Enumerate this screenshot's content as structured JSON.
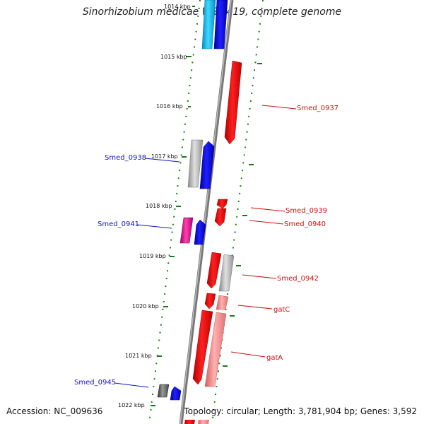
{
  "title": "Sinorhizobium medicae WSM419, complete genome",
  "footer": {
    "accession": "Accession: NC_009636",
    "topology": "Topology: circular; Length: 3,781,904 bp; Genes: 3,592"
  },
  "ticks": [
    "1014 kbp",
    "1015 kbp",
    "1016 kbp",
    "1017 kbp",
    "1018 kbp",
    "1019 kbp",
    "1020 kbp",
    "1021 kbp",
    "1022 kbp"
  ],
  "labels": {
    "left": [
      "Smed_0938",
      "Smed_0941",
      "Smed_0945"
    ],
    "right": [
      "Smed_0937",
      "Smed_0939",
      "Smed_0940",
      "Smed_0942",
      "gatC",
      "gatA"
    ]
  },
  "colors": {
    "backbone": "#888888",
    "left_label": "#1515c8",
    "right_label": "#d01010",
    "dots": "#1a7a1a"
  }
}
